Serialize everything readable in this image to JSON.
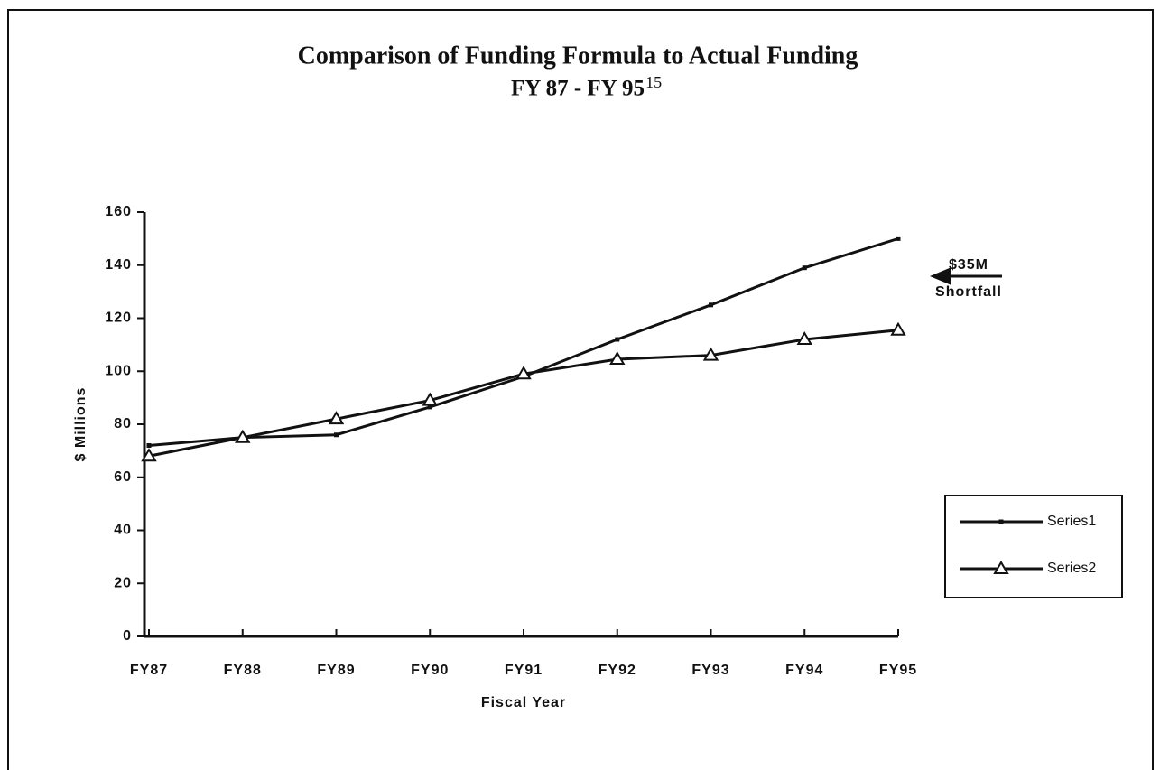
{
  "chart_data": {
    "type": "line",
    "title": "Comparison of Funding Formula to Actual Funding",
    "subtitle": "FY 87 - FY 95",
    "subtitle_footnote": "15",
    "x_label": "Fiscal Year",
    "y_label": "$ Millions",
    "annotation": [
      "$35M",
      "Shortfall"
    ],
    "categories": [
      "FY87",
      "FY88",
      "FY89",
      "FY90",
      "FY91",
      "FY92",
      "FY93",
      "FY94",
      "FY95"
    ],
    "series": [
      {
        "name": "Series1",
        "color": "#111111",
        "marker": "square",
        "values": [
          72,
          75,
          76,
          86.5,
          98,
          112,
          125,
          139,
          150
        ]
      },
      {
        "name": "Series2",
        "color": "#111111",
        "marker": "triangle",
        "values": [
          68,
          75,
          82,
          89,
          99,
          104.5,
          106,
          112,
          115.5
        ]
      }
    ],
    "ylim": [
      0,
      160
    ],
    "yticks": [
      0,
      20,
      40,
      60,
      80,
      100,
      120,
      140,
      160
    ],
    "grid": false,
    "legend": "right"
  }
}
